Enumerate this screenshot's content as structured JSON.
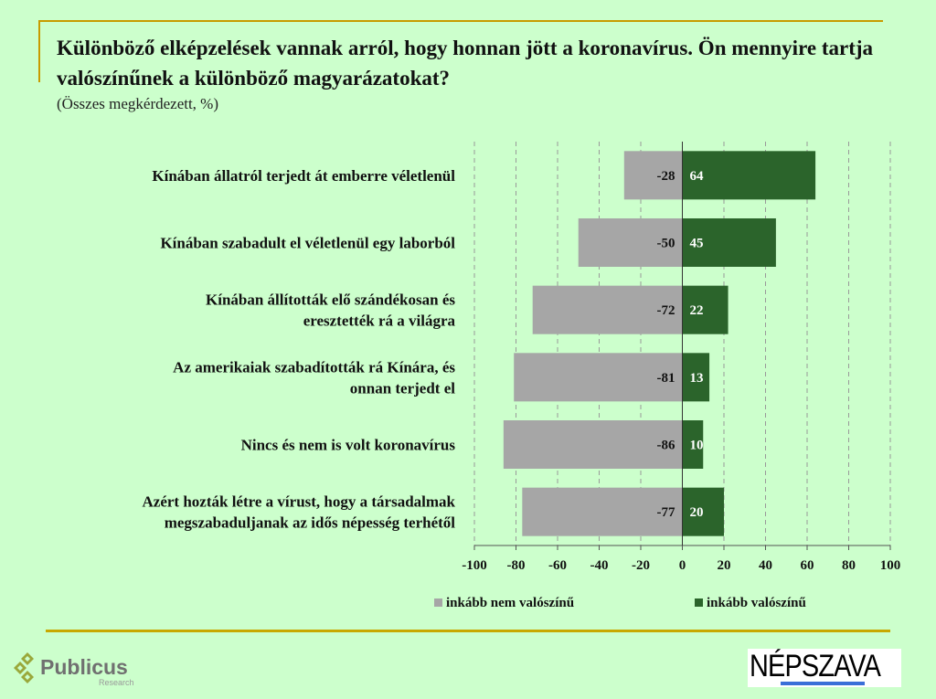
{
  "chart_data": {
    "type": "bar",
    "orientation": "horizontal-diverging",
    "title": "Különböző elképzelések vannak arról, hogy honnan jött a koronavírus. Ön mennyire tartja valószínűnek a különböző magyarázatokat?",
    "subtitle": "(Összes megkérdezett, %)",
    "categories": [
      [
        "Kínában állatról terjedt át emberre véletlenül"
      ],
      [
        "Kínában szabadult el véletlenül egy laborból"
      ],
      [
        "Kínában állították elő szándékosan és",
        "eresztették rá a világra"
      ],
      [
        "Az amerikaiak szabadították rá Kínára, és",
        "onnan terjedt el"
      ],
      [
        "Nincs és nem is volt koronavírus"
      ],
      [
        "Azért hozták létre a vírust, hogy a társadalmak",
        "megszabaduljanak az idős népesség terhétől"
      ]
    ],
    "series": [
      {
        "name": "inkább nem valószínű",
        "color": "#a6a6a6",
        "values": [
          -28,
          -50,
          -72,
          -81,
          -86,
          -77
        ]
      },
      {
        "name": "inkább valószínű",
        "color": "#2b642b",
        "values": [
          64,
          45,
          22,
          13,
          10,
          20
        ]
      }
    ],
    "xlim": [
      -100,
      100
    ],
    "xticks": [
      -100,
      -80,
      -60,
      -40,
      -20,
      0,
      20,
      40,
      60,
      80,
      100
    ],
    "grid": true,
    "legend": "bottom"
  },
  "logos": {
    "left": "Publicus Research",
    "right": "NÉPSZAVA"
  }
}
